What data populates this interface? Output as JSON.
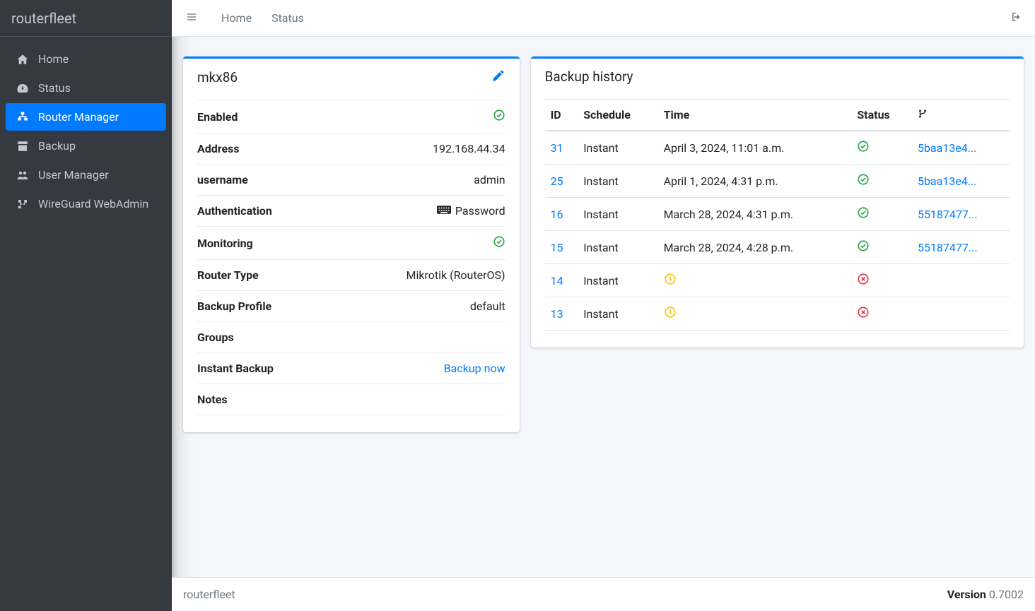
{
  "brand": "routerfleet",
  "sidebar": {
    "items": [
      {
        "label": "Home",
        "icon": "home",
        "active": false
      },
      {
        "label": "Status",
        "icon": "tach",
        "active": false
      },
      {
        "label": "Router Manager",
        "icon": "sitemap",
        "active": true
      },
      {
        "label": "Backup",
        "icon": "archive",
        "active": false
      },
      {
        "label": "User Manager",
        "icon": "users",
        "active": false
      },
      {
        "label": "WireGuard WebAdmin",
        "icon": "network",
        "active": false
      }
    ]
  },
  "topnav": {
    "links": [
      "Home",
      "Status"
    ]
  },
  "router": {
    "name": "mkx86",
    "rows": [
      {
        "label": "Enabled",
        "value": "",
        "kind": "check"
      },
      {
        "label": "Address",
        "value": "192.168.44.34",
        "kind": "text"
      },
      {
        "label": "username",
        "value": "admin",
        "kind": "text"
      },
      {
        "label": "Authentication",
        "value": "Password",
        "kind": "kbd"
      },
      {
        "label": "Monitoring",
        "value": "",
        "kind": "check"
      },
      {
        "label": "Router Type",
        "value": "Mikrotik (RouterOS)",
        "kind": "text"
      },
      {
        "label": "Backup Profile",
        "value": "default",
        "kind": "text"
      },
      {
        "label": "Groups",
        "value": "",
        "kind": "text"
      },
      {
        "label": "Instant Backup",
        "value": "Backup now",
        "kind": "link"
      },
      {
        "label": "Notes",
        "value": "",
        "kind": "text"
      }
    ]
  },
  "history": {
    "title": "Backup history",
    "columns": [
      "ID",
      "Schedule",
      "Time",
      "Status",
      "_branch"
    ],
    "rows": [
      {
        "id": "31",
        "schedule": "Instant",
        "time": "April 3, 2024, 11:01 a.m.",
        "status": "ok",
        "hash": "5baa13e4..."
      },
      {
        "id": "25",
        "schedule": "Instant",
        "time": "April 1, 2024, 4:31 p.m.",
        "status": "ok",
        "hash": "5baa13e4..."
      },
      {
        "id": "16",
        "schedule": "Instant",
        "time": "March 28, 2024, 4:31 p.m.",
        "status": "ok",
        "hash": "55187477..."
      },
      {
        "id": "15",
        "schedule": "Instant",
        "time": "March 28, 2024, 4:28 p.m.",
        "status": "ok",
        "hash": "55187477..."
      },
      {
        "id": "14",
        "schedule": "Instant",
        "time": "",
        "status": "wait",
        "hash": ""
      },
      {
        "id": "13",
        "schedule": "Instant",
        "time": "",
        "status": "wait",
        "hash": ""
      }
    ],
    "err_for_wait_in_hash_col": true
  },
  "footer": {
    "left": "routerfleet",
    "version_label": "Version",
    "version": "0.7002"
  },
  "colors": {
    "primary": "#007bff",
    "sidebar_bg": "#343a40",
    "text_muted": "#6c757d",
    "success": "#28a745",
    "warning": "#ffc107",
    "danger": "#dc3545"
  }
}
